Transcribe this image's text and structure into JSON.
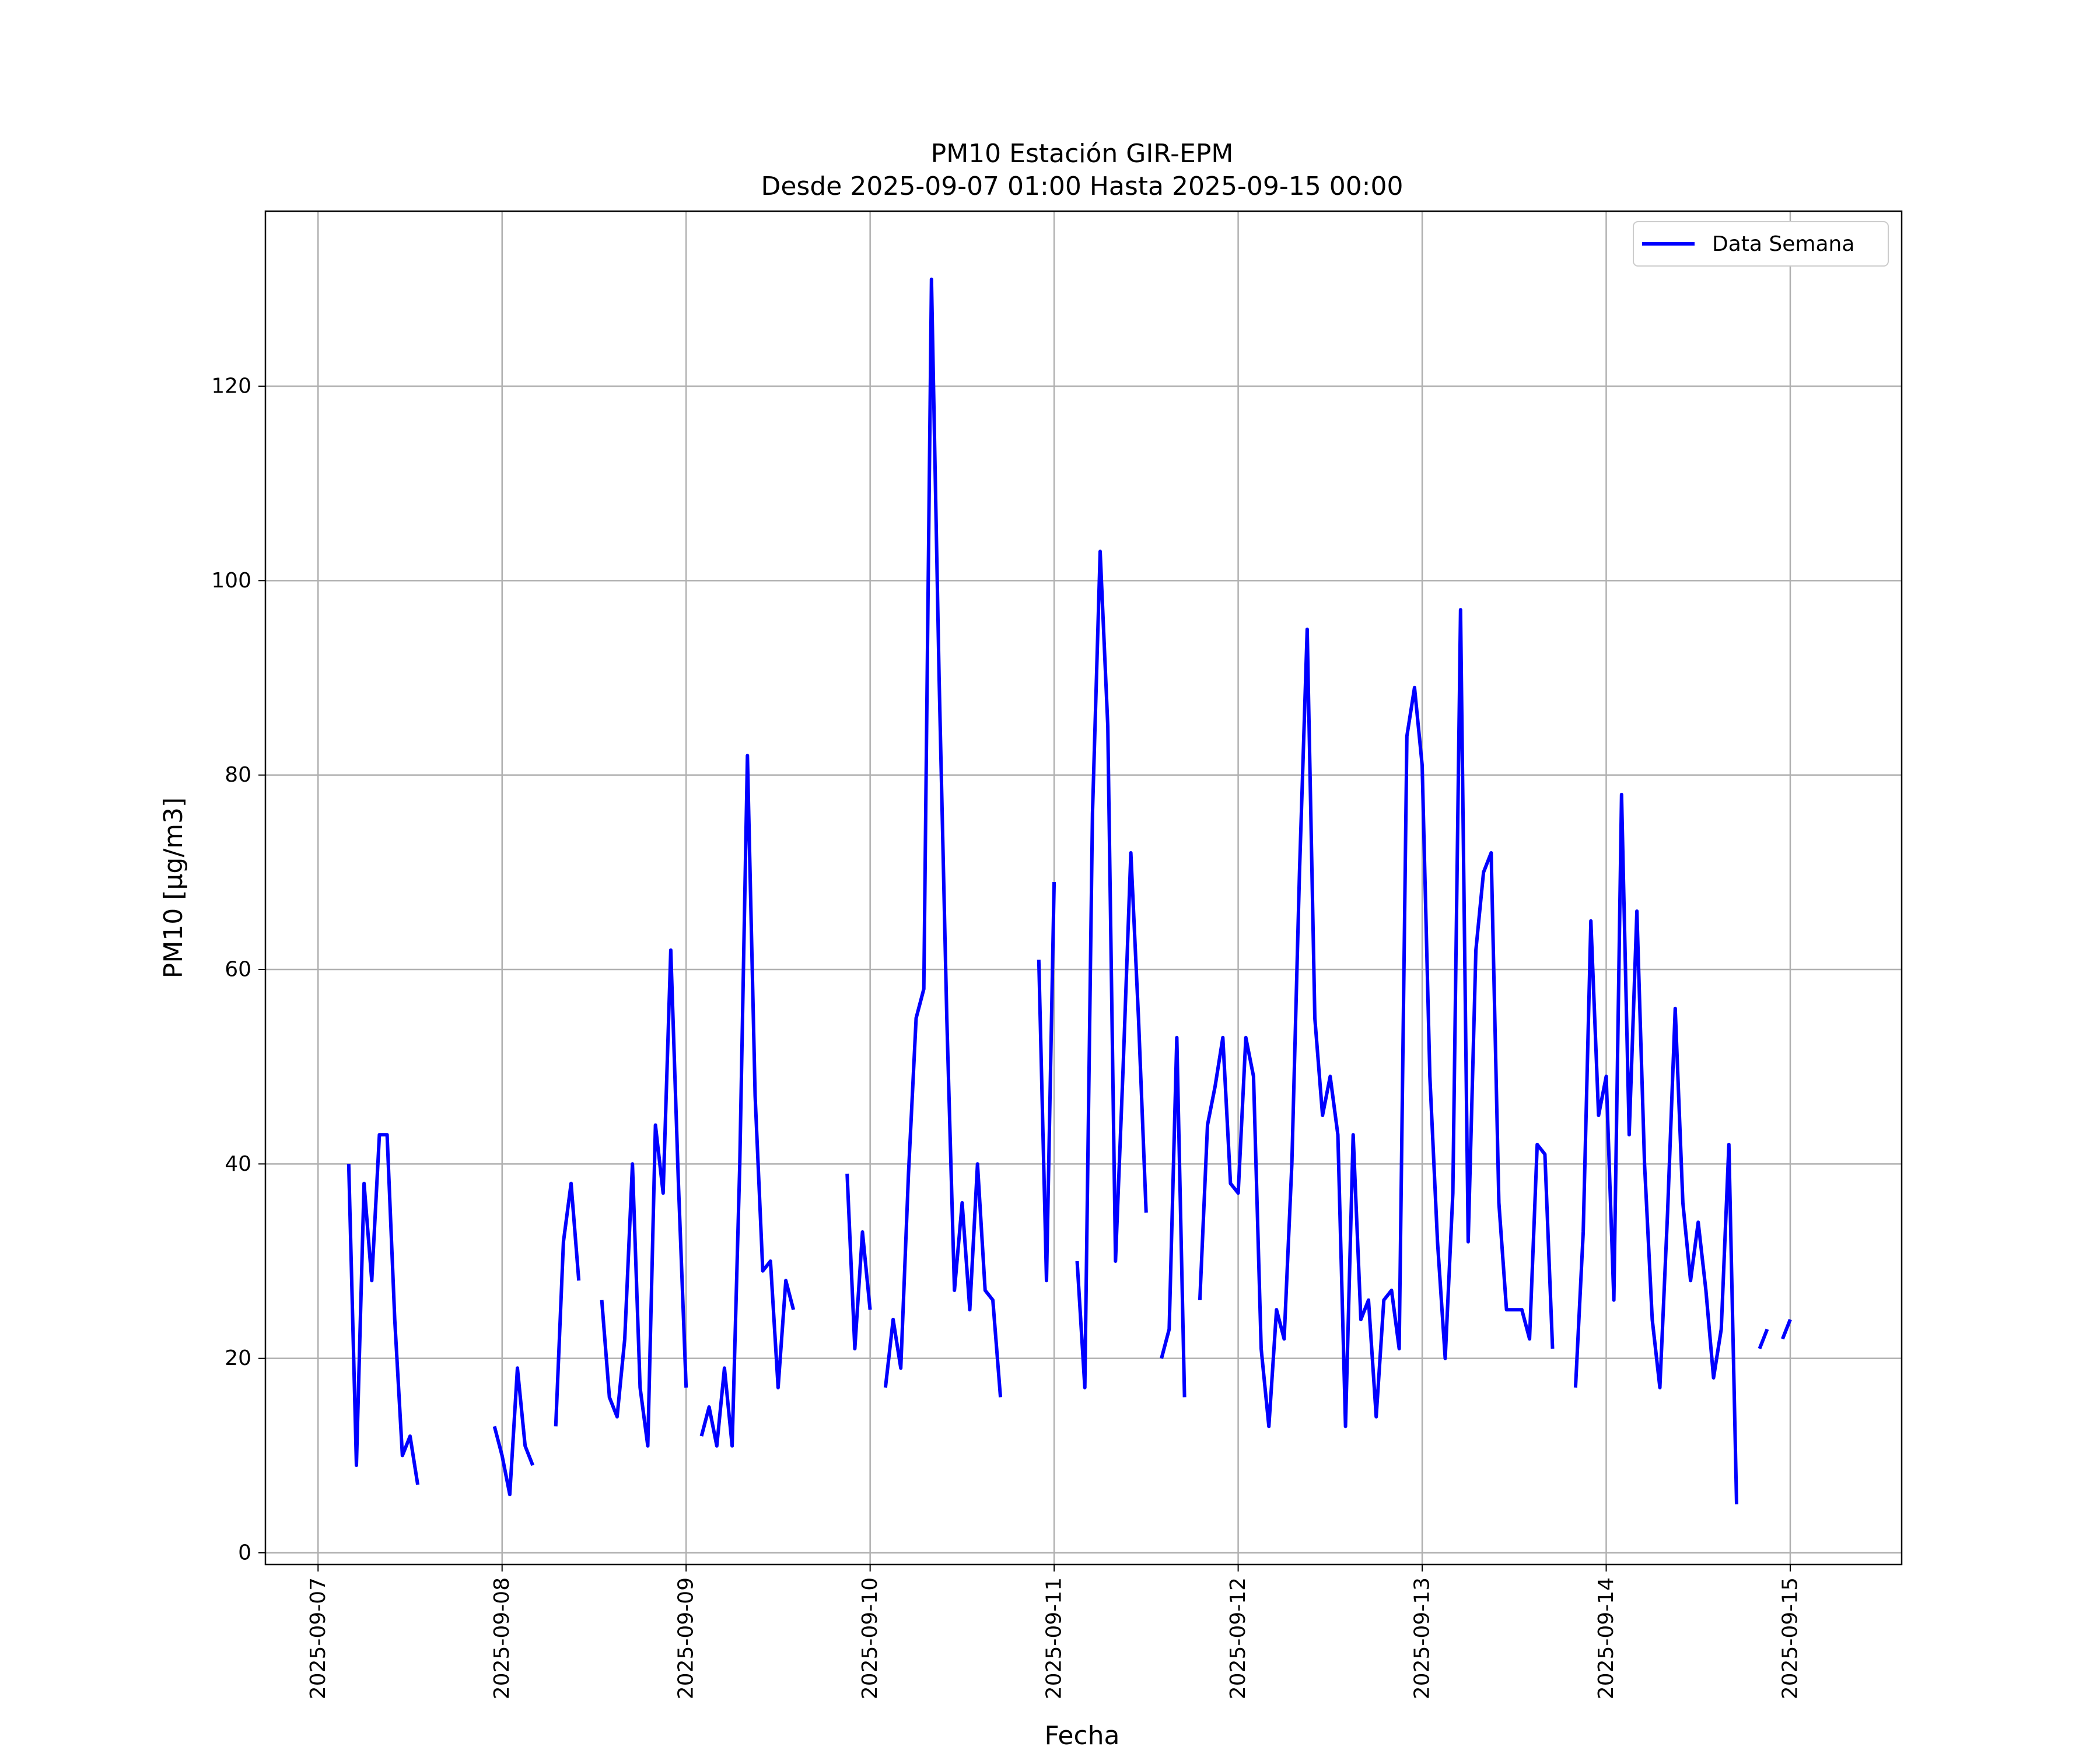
{
  "chart_data": {
    "type": "line",
    "title": "PM10 Estación GIR-EPM",
    "subtitle": "Desde 2025-09-07 01:00 Hasta 2025-09-15 00:00",
    "xlabel": "Fecha",
    "ylabel": "PM10 [μg/m3]",
    "x_range": [
      "2025-09-06 17:08",
      "2025-09-15 14:32"
    ],
    "ylim": [
      -1.2,
      138.0
    ],
    "x_ticks": [
      "2025-09-07",
      "2025-09-08",
      "2025-09-09",
      "2025-09-10",
      "2025-09-11",
      "2025-09-12",
      "2025-09-13",
      "2025-09-14",
      "2025-09-15"
    ],
    "y_ticks": [
      0,
      20,
      40,
      60,
      80,
      100,
      120
    ],
    "grid": true,
    "legend_position": "top-right",
    "line_color": "#0000ff",
    "series": [
      {
        "name": "Data Semana",
        "points": [
          [
            "2025-09-07 04:00",
            40
          ],
          [
            "2025-09-07 05:00",
            9
          ],
          [
            "2025-09-07 06:00",
            38
          ],
          [
            "2025-09-07 07:00",
            28
          ],
          [
            "2025-09-07 08:00",
            43
          ],
          [
            "2025-09-07 09:00",
            43
          ],
          [
            "2025-09-07 10:00",
            24
          ],
          [
            "2025-09-07 11:00",
            10
          ],
          [
            "2025-09-07 12:00",
            12
          ],
          [
            "2025-09-07 13:00",
            7
          ],
          [
            "2025-09-07 23:00",
            13
          ],
          [
            "2025-09-08 00:00",
            10
          ],
          [
            "2025-09-08 01:00",
            6
          ],
          [
            "2025-09-08 02:00",
            19
          ],
          [
            "2025-09-08 03:00",
            11
          ],
          [
            "2025-09-08 04:00",
            9
          ],
          [
            "2025-09-08 07:00",
            13
          ],
          [
            "2025-09-08 08:00",
            32
          ],
          [
            "2025-09-08 09:00",
            38
          ],
          [
            "2025-09-08 10:00",
            28
          ],
          [
            "2025-09-08 13:00",
            26
          ],
          [
            "2025-09-08 14:00",
            16
          ],
          [
            "2025-09-08 15:00",
            14
          ],
          [
            "2025-09-08 16:00",
            22
          ],
          [
            "2025-09-08 17:00",
            40
          ],
          [
            "2025-09-08 18:00",
            17
          ],
          [
            "2025-09-08 19:00",
            11
          ],
          [
            "2025-09-08 20:00",
            44
          ],
          [
            "2025-09-08 21:00",
            37
          ],
          [
            "2025-09-08 22:00",
            62
          ],
          [
            "2025-09-08 23:00",
            38
          ],
          [
            "2025-09-09 00:00",
            17
          ],
          [
            "2025-09-09 02:00",
            12
          ],
          [
            "2025-09-09 03:00",
            15
          ],
          [
            "2025-09-09 04:00",
            11
          ],
          [
            "2025-09-09 05:00",
            19
          ],
          [
            "2025-09-09 06:00",
            11
          ],
          [
            "2025-09-09 07:00",
            40
          ],
          [
            "2025-09-09 08:00",
            82
          ],
          [
            "2025-09-09 09:00",
            47
          ],
          [
            "2025-09-09 10:00",
            29
          ],
          [
            "2025-09-09 11:00",
            30
          ],
          [
            "2025-09-09 12:00",
            17
          ],
          [
            "2025-09-09 13:00",
            28
          ],
          [
            "2025-09-09 14:00",
            25
          ],
          [
            "2025-09-09 21:00",
            39
          ],
          [
            "2025-09-09 22:00",
            21
          ],
          [
            "2025-09-09 23:00",
            33
          ],
          [
            "2025-09-10 00:00",
            25
          ],
          [
            "2025-09-10 02:00",
            17
          ],
          [
            "2025-09-10 03:00",
            24
          ],
          [
            "2025-09-10 04:00",
            19
          ],
          [
            "2025-09-10 05:00",
            39
          ],
          [
            "2025-09-10 06:00",
            55
          ],
          [
            "2025-09-10 07:00",
            58
          ],
          [
            "2025-09-10 08:00",
            131
          ],
          [
            "2025-09-10 09:00",
            90
          ],
          [
            "2025-09-10 10:00",
            55
          ],
          [
            "2025-09-10 11:00",
            27
          ],
          [
            "2025-09-10 12:00",
            36
          ],
          [
            "2025-09-10 13:00",
            25
          ],
          [
            "2025-09-10 14:00",
            40
          ],
          [
            "2025-09-10 15:00",
            27
          ],
          [
            "2025-09-10 16:00",
            26
          ],
          [
            "2025-09-10 17:00",
            16
          ],
          [
            "2025-09-10 22:00",
            61
          ],
          [
            "2025-09-10 23:00",
            28
          ],
          [
            "2025-09-11 00:00",
            69
          ],
          [
            "2025-09-11 03:00",
            30
          ],
          [
            "2025-09-11 04:00",
            17
          ],
          [
            "2025-09-11 05:00",
            76
          ],
          [
            "2025-09-11 06:00",
            103
          ],
          [
            "2025-09-11 07:00",
            85
          ],
          [
            "2025-09-11 08:00",
            30
          ],
          [
            "2025-09-11 09:00",
            50
          ],
          [
            "2025-09-11 10:00",
            72
          ],
          [
            "2025-09-11 11:00",
            55
          ],
          [
            "2025-09-11 12:00",
            35
          ],
          [
            "2025-09-11 14:00",
            20
          ],
          [
            "2025-09-11 15:00",
            23
          ],
          [
            "2025-09-11 16:00",
            53
          ],
          [
            "2025-09-11 17:00",
            16
          ],
          [
            "2025-09-11 19:00",
            26
          ],
          [
            "2025-09-11 20:00",
            44
          ],
          [
            "2025-09-11 21:00",
            48
          ],
          [
            "2025-09-11 22:00",
            53
          ],
          [
            "2025-09-11 23:00",
            38
          ],
          [
            "2025-09-12 00:00",
            37
          ],
          [
            "2025-09-12 01:00",
            53
          ],
          [
            "2025-09-12 02:00",
            49
          ],
          [
            "2025-09-12 03:00",
            21
          ],
          [
            "2025-09-12 04:00",
            13
          ],
          [
            "2025-09-12 05:00",
            25
          ],
          [
            "2025-09-12 06:00",
            22
          ],
          [
            "2025-09-12 07:00",
            40
          ],
          [
            "2025-09-12 08:00",
            70
          ],
          [
            "2025-09-12 09:00",
            95
          ],
          [
            "2025-09-12 10:00",
            55
          ],
          [
            "2025-09-12 11:00",
            45
          ],
          [
            "2025-09-12 12:00",
            49
          ],
          [
            "2025-09-12 13:00",
            43
          ],
          [
            "2025-09-12 14:00",
            13
          ],
          [
            "2025-09-12 15:00",
            43
          ],
          [
            "2025-09-12 16:00",
            24
          ],
          [
            "2025-09-12 17:00",
            26
          ],
          [
            "2025-09-12 18:00",
            14
          ],
          [
            "2025-09-12 19:00",
            26
          ],
          [
            "2025-09-12 20:00",
            27
          ],
          [
            "2025-09-12 21:00",
            21
          ],
          [
            "2025-09-12 22:00",
            84
          ],
          [
            "2025-09-12 23:00",
            89
          ],
          [
            "2025-09-13 00:00",
            81
          ],
          [
            "2025-09-13 01:00",
            49
          ],
          [
            "2025-09-13 02:00",
            32
          ],
          [
            "2025-09-13 03:00",
            20
          ],
          [
            "2025-09-13 04:00",
            37
          ],
          [
            "2025-09-13 05:00",
            97
          ],
          [
            "2025-09-13 06:00",
            32
          ],
          [
            "2025-09-13 07:00",
            62
          ],
          [
            "2025-09-13 08:00",
            70
          ],
          [
            "2025-09-13 09:00",
            72
          ],
          [
            "2025-09-13 10:00",
            36
          ],
          [
            "2025-09-13 11:00",
            25
          ],
          [
            "2025-09-13 12:00",
            25
          ],
          [
            "2025-09-13 13:00",
            25
          ],
          [
            "2025-09-13 14:00",
            22
          ],
          [
            "2025-09-13 15:00",
            42
          ],
          [
            "2025-09-13 16:00",
            41
          ],
          [
            "2025-09-13 17:00",
            21
          ],
          [
            "2025-09-13 20:00",
            17
          ],
          [
            "2025-09-13 21:00",
            33
          ],
          [
            "2025-09-13 22:00",
            65
          ],
          [
            "2025-09-13 23:00",
            45
          ],
          [
            "2025-09-14 00:00",
            49
          ],
          [
            "2025-09-14 01:00",
            26
          ],
          [
            "2025-09-14 02:00",
            78
          ],
          [
            "2025-09-14 03:00",
            43
          ],
          [
            "2025-09-14 04:00",
            66
          ],
          [
            "2025-09-14 05:00",
            40
          ],
          [
            "2025-09-14 06:00",
            24
          ],
          [
            "2025-09-14 07:00",
            17
          ],
          [
            "2025-09-14 08:00",
            35
          ],
          [
            "2025-09-14 09:00",
            56
          ],
          [
            "2025-09-14 10:00",
            36
          ],
          [
            "2025-09-14 11:00",
            28
          ],
          [
            "2025-09-14 12:00",
            34
          ],
          [
            "2025-09-14 13:00",
            27
          ],
          [
            "2025-09-14 14:00",
            18
          ],
          [
            "2025-09-14 15:00",
            23
          ],
          [
            "2025-09-14 16:00",
            42
          ],
          [
            "2025-09-14 17:00",
            5
          ],
          [
            "2025-09-14 20:00",
            21
          ],
          [
            "2025-09-14 21:00",
            23
          ],
          [
            "2025-09-14 23:00",
            22
          ],
          [
            "2025-09-15 00:00",
            24
          ]
        ]
      }
    ]
  }
}
